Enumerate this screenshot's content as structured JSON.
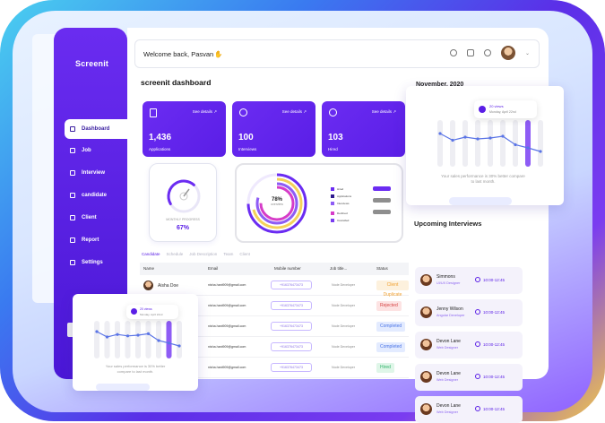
{
  "app": {
    "logo": "Screenit"
  },
  "sidebar": {
    "items": [
      {
        "label": "Dashboard",
        "icon": "dashboard-icon",
        "active": true
      },
      {
        "label": "Job",
        "icon": "job-icon"
      },
      {
        "label": "Interview",
        "icon": "interview-icon"
      },
      {
        "label": "candidate",
        "icon": "candidate-icon"
      },
      {
        "label": "Client",
        "icon": "client-icon"
      },
      {
        "label": "Report",
        "icon": "report-icon"
      },
      {
        "label": "Settings",
        "icon": "settings-icon"
      }
    ]
  },
  "topbar": {
    "greeting": "Welcome back, Pasvan",
    "icons": [
      "settings-icon",
      "mail-icon",
      "bell-icon"
    ]
  },
  "page": {
    "title": "screenit dashboard"
  },
  "kpis": [
    {
      "value": "1,436",
      "label": "Applications",
      "link": "See details"
    },
    {
      "value": "100",
      "label": "Interviews",
      "link": "See details"
    },
    {
      "value": "103",
      "label": "Hired",
      "link": "See details"
    }
  ],
  "gauge": {
    "caption": "MONTHLY PROGRESS",
    "value": "67%",
    "progress": 0.67
  },
  "donut": {
    "center_value": "78%",
    "center_label": "overview",
    "legend": [
      {
        "label": "Hired",
        "color": "#6b2cf2"
      },
      {
        "label": "Applications",
        "color": "#2f1b8e"
      },
      {
        "label": "Interviews",
        "color": "#8e5cf5"
      },
      {
        "label": "Declined",
        "color": "#d63cc8"
      },
      {
        "label": "Cancelled",
        "color": "#7a3cf0"
      }
    ]
  },
  "table": {
    "tabs": [
      "Candidate",
      "Schedule",
      "Job Description",
      "Team",
      "Client"
    ],
    "headers": [
      "Name",
      "Email",
      "Mobile number",
      "Job title...",
      "Status"
    ],
    "rows": [
      {
        "name": "Aisha Doe",
        "email": "nisha.hani909@gmail.com",
        "phone": "+916376473473",
        "job": "Node Developer",
        "status": "Client Duplicate",
        "status_color": "#f0a030",
        "status_bg": "#fdf1dd"
      },
      {
        "name": "",
        "email": "nisha.hani909@gmail.com",
        "phone": "+916376473473",
        "job": "Node Developer",
        "status": "Rejected",
        "status_color": "#d64545",
        "status_bg": "#fde3e3"
      },
      {
        "name": "",
        "email": "nisha.hani909@gmail.com",
        "phone": "+916376473473",
        "job": "Node Developer",
        "status": "Completed",
        "status_color": "#4a74e6",
        "status_bg": "#e3ebff"
      },
      {
        "name": "",
        "email": "nisha.hani909@gmail.com",
        "phone": "+916376473473",
        "job": "Node Developer",
        "status": "Completed",
        "status_color": "#4a74e6",
        "status_bg": "#e3ebff"
      },
      {
        "name": "",
        "email": "nisha.hani909@gmail.com",
        "phone": "+916376473473",
        "job": "Node Developer",
        "status": "Hired",
        "status_color": "#2fb36a",
        "status_bg": "#dff6e8"
      }
    ]
  },
  "calendar": {
    "month": "November, 2020"
  },
  "upcoming": {
    "title": "Upcoming Interviews",
    "items": [
      {
        "name": "Simmons",
        "role": "UI/UX Designer",
        "time": "10:00-12:45"
      },
      {
        "name": "Jenny Wilson",
        "role": "Angular Developer",
        "time": "10:00-12:45"
      },
      {
        "name": "Devon Lane",
        "role": "Web Designer",
        "time": "10:00-12:45"
      },
      {
        "name": "Devon Lane",
        "role": "Web Designer",
        "time": "10:00-12:45"
      },
      {
        "name": "Devon Lane",
        "role": "Web Designer",
        "time": "10:00-12:45"
      }
    ]
  },
  "perf_card": {
    "tooltip_views": "20 views",
    "tooltip_date": "Monday, April 22nd",
    "caption": "Your sales performance is 30% better compare to last month.",
    "chart_data": {
      "type": "line",
      "values": [
        0.7,
        0.55,
        0.62,
        0.58,
        0.6,
        0.64,
        0.45,
        0.38,
        0.3
      ],
      "highlight_index": 7
    }
  }
}
